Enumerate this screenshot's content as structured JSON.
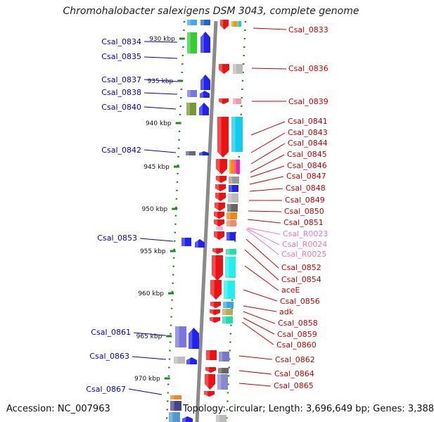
{
  "title": "Chromohalobacter salexigens DSM 3043, complete genome",
  "footer": {
    "accession": "Accession: NC_007963",
    "topology": "Topology: circular; Length: 3,696,649 bp; Genes: 3,388"
  },
  "colors": {
    "left_label": "#0000cc",
    "right_label": "#cc0000",
    "rna_label": "#ee77bb",
    "ticks": "#228822",
    "backbone": "#888888"
  },
  "ticks": [
    "930 kbp",
    "935 kbp",
    "940 kbp",
    "945 kbp",
    "950 kbp",
    "955 kbp",
    "960 kbp",
    "965 kbp",
    "970 kbp"
  ],
  "left_genes": [
    "Csal_0834",
    "Csal_0835",
    "Csal_0837",
    "Csal_0838",
    "Csal_0840",
    "Csal_0842",
    "Csal_0853",
    "Csal_0861",
    "Csal_0863",
    "Csal_0867"
  ],
  "right_genes": [
    "Csal_0833",
    "Csal_0836",
    "Csal_0839",
    "Csal_0841",
    "Csal_0843",
    "Csal_0844",
    "Csal_0845",
    "Csal_0846",
    "Csal_0847",
    "Csal_0848",
    "Csal_0849",
    "Csal_0850",
    "Csal_0851",
    "Csal_R0023",
    "Csal_R0024",
    "Csal_R0025",
    "Csal_0852",
    "Csal_0854",
    "aceE",
    "Csal_0856",
    "adk",
    "Csal_0858",
    "Csal_0859",
    "Csal_0860",
    "Csal_0862",
    "Csal_0864",
    "Csal_0865"
  ]
}
